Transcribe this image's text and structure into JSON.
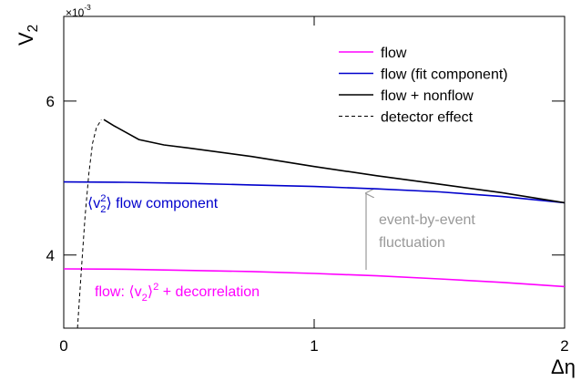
{
  "chart_data": {
    "type": "line",
    "x_label": "Δη",
    "y_label": [
      {
        "text": "V"
      },
      {
        "text": "2",
        "script": "sub"
      }
    ],
    "multiplier": [
      {
        "text": "×10"
      },
      {
        "text": "-3",
        "script": "sup"
      }
    ],
    "xlim": [
      0,
      2
    ],
    "ylim": [
      3.05,
      7.1
    ],
    "xticks": [
      0,
      1,
      2
    ],
    "yticks": [
      4,
      6
    ],
    "legend": "upper right",
    "series": [
      {
        "name": "flow",
        "color": "#ff00ff",
        "dash": false,
        "x": [
          0,
          0.25,
          0.5,
          0.75,
          1,
          1.25,
          1.5,
          1.75,
          2
        ],
        "values": [
          3.82,
          3.815,
          3.8,
          3.785,
          3.76,
          3.73,
          3.69,
          3.645,
          3.59
        ]
      },
      {
        "name": "flow (fit component)",
        "color": "#0000cc",
        "dash": false,
        "x": [
          0,
          0.25,
          0.5,
          0.75,
          1,
          1.25,
          1.5,
          1.75,
          2
        ],
        "values": [
          4.95,
          4.945,
          4.93,
          4.91,
          4.89,
          4.86,
          4.82,
          4.76,
          4.68
        ]
      },
      {
        "name": "flow + nonflow",
        "color": "#000000",
        "dash": false,
        "x": [
          0.16,
          0.2,
          0.3,
          0.4,
          0.5,
          0.75,
          1,
          1.25,
          1.5,
          1.75,
          2
        ],
        "values": [
          5.76,
          5.68,
          5.5,
          5.43,
          5.39,
          5.28,
          5.15,
          5.03,
          4.92,
          4.81,
          4.68
        ]
      },
      {
        "name": "detector effect",
        "color": "#000000",
        "dash": true,
        "x": [
          0.055,
          0.07,
          0.085,
          0.1,
          0.115,
          0.13,
          0.15
        ],
        "values": [
          3.05,
          3.8,
          4.5,
          5.05,
          5.45,
          5.65,
          5.76
        ]
      }
    ],
    "annotations": [
      {
        "color": "#0000cc",
        "parts": [
          {
            "text": "⟨v"
          },
          {
            "text": "2",
            "script": "sup"
          },
          {
            "text": "2",
            "script": "sub"
          },
          {
            "text": "⟩ flow component"
          }
        ]
      },
      {
        "color": "#ff00ff",
        "parts": [
          {
            "text": "flow: ⟨v"
          },
          {
            "text": "2",
            "script": "sub"
          },
          {
            "text": "⟩"
          },
          {
            "text": "2",
            "script": "sup"
          },
          {
            "text": " + decorrelation"
          }
        ]
      },
      {
        "color": "#999999",
        "parts": [
          {
            "text": "event-by-event"
          }
        ]
      },
      {
        "color": "#999999",
        "parts": [
          {
            "text": "fluctuation"
          }
        ]
      }
    ]
  }
}
